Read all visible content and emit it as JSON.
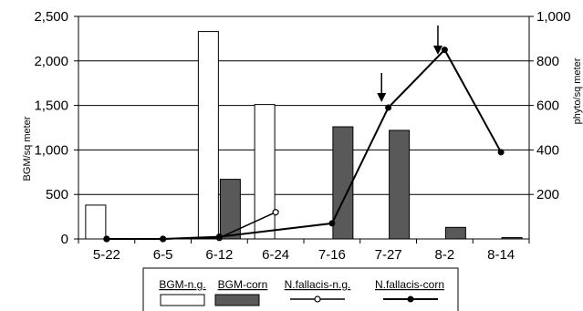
{
  "chart_data": {
    "type": "bar",
    "categories": [
      "5-22",
      "6-5",
      "6-12",
      "6-24",
      "7-16",
      "7-27",
      "8-2",
      "8-14"
    ],
    "ylabel": "BGM/sq meter",
    "y2label": "phyto/sq meter",
    "ylim": [
      0,
      2500
    ],
    "y_ticks": [
      "0",
      "500",
      "1,000",
      "1,500",
      "2,000",
      "2,500"
    ],
    "y2lim": [
      0,
      1000
    ],
    "y2_ticks": [
      "200",
      "400",
      "600",
      "800",
      "1,000"
    ],
    "grid": true,
    "legend_position": "bottom",
    "bar_series": [
      {
        "name": "BGM-n.g.",
        "color": "#ffffff",
        "values": [
          380,
          0,
          2330,
          1510,
          0,
          0,
          0,
          0
        ]
      },
      {
        "name": "BGM-corn",
        "color": "#595959",
        "values": [
          0,
          0,
          670,
          0,
          1260,
          1220,
          130,
          15
        ]
      }
    ],
    "line_series": [
      {
        "name": "N.fallacis-n.g.",
        "marker": "open-circle",
        "axis": "right",
        "values": [
          0,
          0,
          5,
          120,
          null,
          null,
          null,
          null
        ]
      },
      {
        "name": "N.fallacis-corn",
        "marker": "filled-circle",
        "axis": "right",
        "values": [
          0,
          0,
          10,
          null,
          70,
          590,
          850,
          390
        ]
      }
    ],
    "annotations": [
      {
        "type": "down-arrow",
        "category": "7-27"
      },
      {
        "type": "down-arrow",
        "category": "8-2"
      }
    ]
  }
}
